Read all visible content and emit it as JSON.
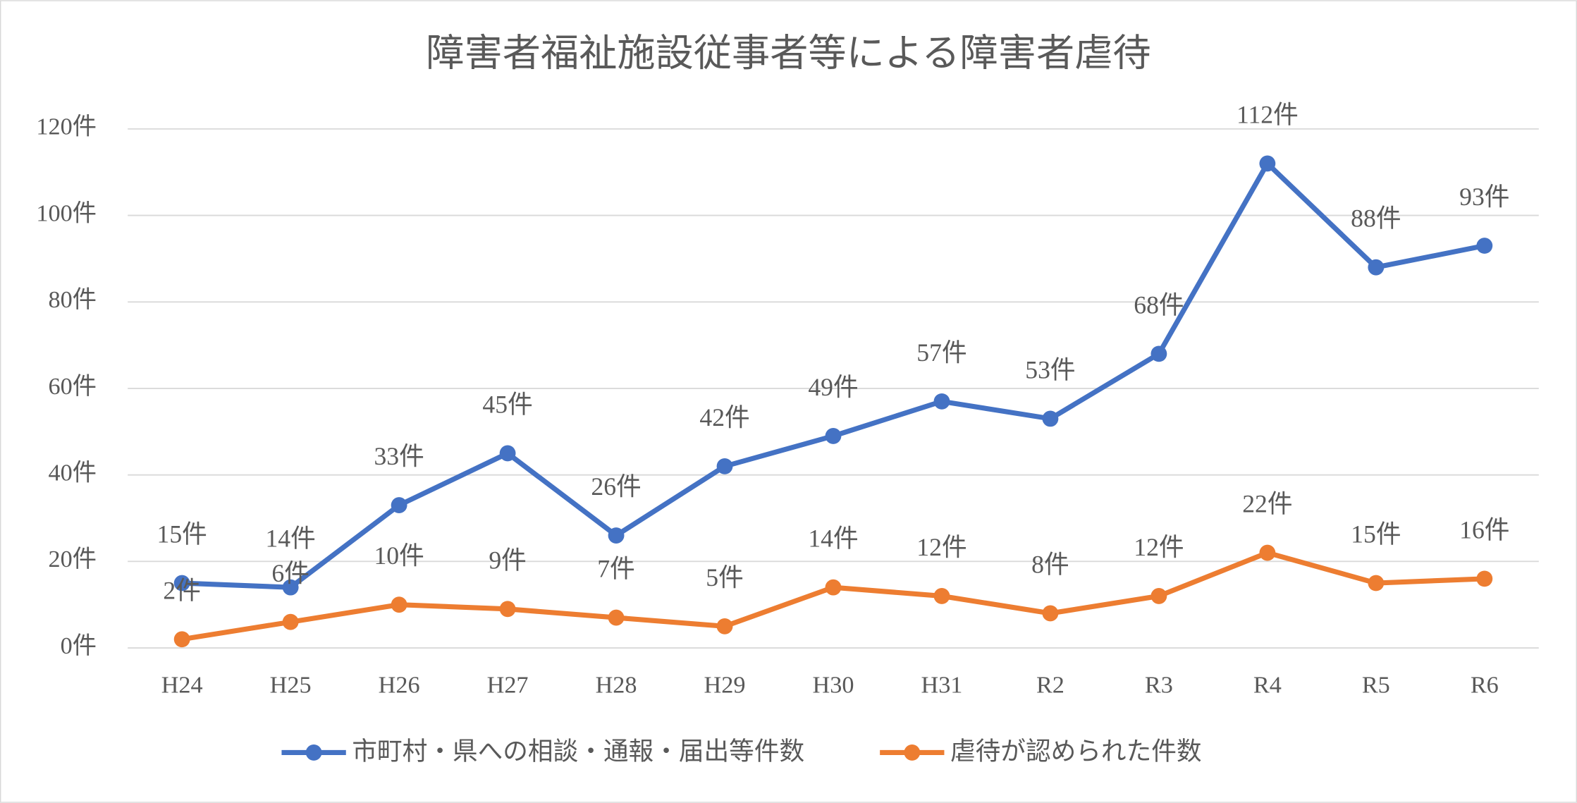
{
  "chart_data": {
    "type": "line",
    "title": "障害者福祉施設従事者等による障害者虐待",
    "categories": [
      "H24",
      "H25",
      "H26",
      "H27",
      "H28",
      "H29",
      "H30",
      "H31",
      "R2",
      "R3",
      "R4",
      "R5",
      "R6"
    ],
    "series": [
      {
        "name": "市町村・県への相談・通報・届出等件数",
        "color": "#4472c4",
        "values": [
          15,
          14,
          33,
          45,
          26,
          42,
          49,
          57,
          53,
          68,
          112,
          88,
          93
        ],
        "value_labels": [
          "15件",
          "14件",
          "33件",
          "45件",
          "26件",
          "42件",
          "49件",
          "57件",
          "53件",
          "68件",
          "112件",
          "88件",
          "93件"
        ]
      },
      {
        "name": "虐待が認められた件数",
        "color": "#ed7d31",
        "values": [
          2,
          6,
          10,
          9,
          7,
          5,
          14,
          12,
          8,
          12,
          22,
          15,
          16
        ],
        "value_labels": [
          "2件",
          "6件",
          "10件",
          "9件",
          "7件",
          "5件",
          "14件",
          "12件",
          "8件",
          "12件",
          "22件",
          "15件",
          "16件"
        ]
      }
    ],
    "ylim": [
      0,
      120
    ],
    "yticks": [
      {
        "value": 0,
        "label": "0件"
      },
      {
        "value": 20,
        "label": "20件"
      },
      {
        "value": 40,
        "label": "40件"
      },
      {
        "value": 60,
        "label": "60件"
      },
      {
        "value": 80,
        "label": "80件"
      },
      {
        "value": 100,
        "label": "100件"
      },
      {
        "value": 120,
        "label": "120件"
      }
    ],
    "grid": true,
    "legend": "bottom"
  }
}
